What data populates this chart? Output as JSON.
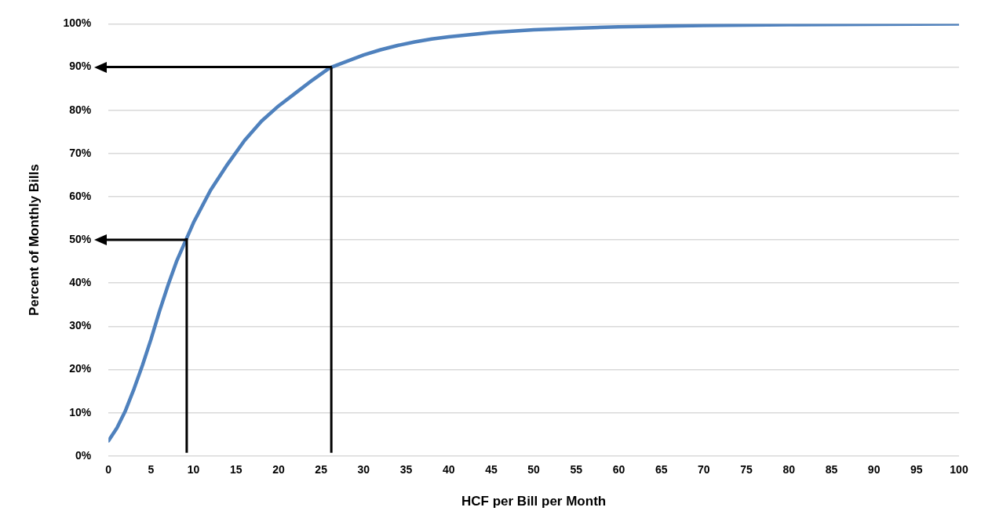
{
  "chart_data": {
    "type": "line",
    "xlabel": "HCF per Bill per Month",
    "ylabel": "Percent of Monthly Bills",
    "x": [
      0,
      1,
      2,
      3,
      4,
      5,
      6,
      7,
      8,
      9,
      10,
      12,
      14,
      16,
      18,
      20,
      22,
      24,
      26,
      28,
      30,
      32,
      34,
      36,
      38,
      40,
      45,
      50,
      55,
      60,
      70,
      80,
      90,
      100
    ],
    "series": [
      {
        "color": "#4f81bd",
        "values": [
          3.5,
          6.5,
          10.5,
          15.5,
          21,
          27,
          33.5,
          39.5,
          45,
          49.5,
          54,
          61.5,
          67.5,
          73,
          77.5,
          81,
          84,
          87,
          89.8,
          91.3,
          92.8,
          94,
          95,
          95.8,
          96.5,
          97,
          98,
          98.6,
          99,
          99.3,
          99.6,
          99.8,
          99.9,
          100
        ]
      }
    ],
    "xlim": [
      0,
      100
    ],
    "xticks": [
      0,
      5,
      10,
      15,
      20,
      25,
      30,
      35,
      40,
      45,
      50,
      55,
      60,
      65,
      70,
      75,
      80,
      85,
      90,
      95,
      100
    ],
    "ylim": [
      0,
      100
    ],
    "yticks": [
      {
        "value": 0,
        "label": "0%"
      },
      {
        "value": 10,
        "label": "10%"
      },
      {
        "value": 20,
        "label": "20%"
      },
      {
        "value": 30,
        "label": "30%"
      },
      {
        "value": 40,
        "label": "40%"
      },
      {
        "value": 50,
        "label": "50%"
      },
      {
        "value": 60,
        "label": "60%"
      },
      {
        "value": 70,
        "label": "70%"
      },
      {
        "value": 80,
        "label": "80%"
      },
      {
        "value": 90,
        "label": "90%"
      },
      {
        "value": 100,
        "label": "100%"
      }
    ],
    "grid": "y",
    "marker": "none",
    "line_style": "solid",
    "ref_lines": [
      {
        "axis": "x",
        "value": 9.2,
        "color": "#000000"
      },
      {
        "axis": "y",
        "value": 50,
        "color": "#000000"
      },
      {
        "axis": "x",
        "value": 26.2,
        "color": "#000000"
      },
      {
        "axis": "y",
        "value": 90,
        "color": "#000000"
      }
    ]
  }
}
